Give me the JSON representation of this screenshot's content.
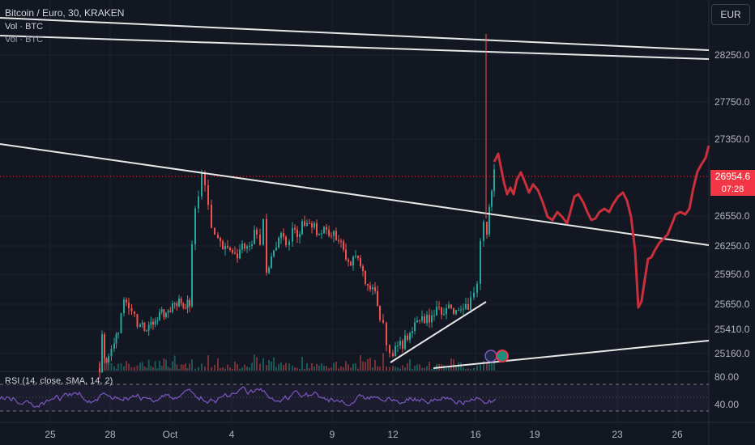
{
  "legend": {
    "title": "Bitcoin / Euro, 30, KRAKEN",
    "vol_line_1": "Vol · BTC",
    "vol_line_2": "Vol · BTC"
  },
  "currency_button": "EUR",
  "price_axis": {
    "ticks": [
      "28250.0",
      "27750.0",
      "27350.0",
      "26550.0",
      "26250.0",
      "25950.0",
      "25650.0",
      "25410.0",
      "25160.0"
    ],
    "current_price": "26954.6",
    "countdown": "07:28"
  },
  "rsi": {
    "label": "RSI (14, close, SMA, 14, 2)",
    "ticks": [
      "80.00",
      "40.00"
    ]
  },
  "time_axis": {
    "ticks": [
      "25",
      "28",
      "Oct",
      "4",
      "9",
      "12",
      "16",
      "19",
      "23",
      "26"
    ]
  },
  "colors": {
    "background": "#131722",
    "up": "#26a69a",
    "down": "#ef5350",
    "drawing_red": "#c9303b",
    "trend_lines": "#e8e8e8",
    "rsi": "#7e57c2",
    "current_price": "#f23645"
  },
  "chart_data": {
    "type": "candlestick",
    "symbol": "Bitcoin / Euro",
    "interval": "30",
    "exchange": "KRAKEN",
    "last_price": 26954.6,
    "indicators": [
      "Vol · BTC",
      "RSI (14, close, SMA, 14, 2)"
    ]
  }
}
